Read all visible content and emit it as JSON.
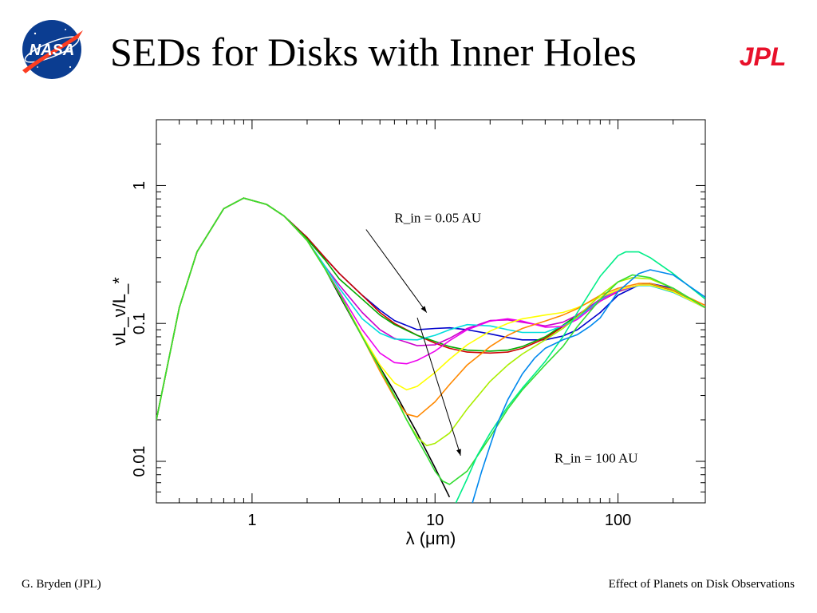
{
  "slide": {
    "title": "SEDs for Disks with Inner Holes",
    "footer_left": "G. Bryden (JPL)",
    "footer_right": "Effect of Planets on Disk Observations",
    "logo_left_text": "NASA",
    "logo_right_text": "JPL"
  },
  "colors": {
    "nasa_blue": "#0b3d91",
    "nasa_red": "#fc3d21",
    "jpl_red": "#e8102a"
  },
  "chart_data": {
    "type": "line",
    "xscale": "log",
    "yscale": "log",
    "xlim": [
      0.3,
      300
    ],
    "ylim": [
      0.005,
      3
    ],
    "xlabel": "λ (μm)",
    "ylabel": "νL_ν/L_*",
    "x_ticks": [
      {
        "value": 1,
        "label": "1"
      },
      {
        "value": 10,
        "label": "10"
      },
      {
        "value": 100,
        "label": "100"
      }
    ],
    "y_ticks": [
      {
        "value": 1,
        "label": "1"
      },
      {
        "value": 0.1,
        "label": "0.1"
      },
      {
        "value": 0.01,
        "label": "0.01"
      }
    ],
    "grid": false,
    "annotations": [
      {
        "text": "R_in = 0.05 AU",
        "x": 6.0,
        "y": 0.54,
        "arrow_from": [
          4.2,
          0.48
        ],
        "arrow_to": [
          9.0,
          0.12
        ]
      },
      {
        "text": "R_in = 100 AU",
        "x": 45,
        "y": 0.0098,
        "arrow_from": [
          8.0,
          0.11
        ],
        "arrow_to": [
          13.8,
          0.011
        ]
      }
    ],
    "series": [
      {
        "color": "#000000",
        "x": [
          0.3,
          0.4,
          0.5,
          0.7,
          0.9,
          1.2,
          1.5,
          2,
          2.5,
          3,
          4,
          5,
          6,
          7,
          8,
          10,
          12
        ],
        "y": [
          0.02,
          0.13,
          0.33,
          0.68,
          0.81,
          0.73,
          0.6,
          0.4,
          0.25,
          0.16,
          0.08,
          0.048,
          0.032,
          0.022,
          0.016,
          0.009,
          0.0055
        ]
      },
      {
        "color": "#0000cc",
        "x": [
          0.3,
          0.4,
          0.5,
          0.7,
          0.9,
          1.2,
          1.5,
          2,
          2.5,
          3,
          4,
          5,
          6,
          8,
          10,
          12,
          15,
          20,
          25,
          30,
          40,
          50,
          60,
          80,
          100,
          130,
          150,
          200,
          300
        ],
        "y": [
          0.02,
          0.13,
          0.33,
          0.68,
          0.81,
          0.73,
          0.6,
          0.42,
          0.3,
          0.23,
          0.16,
          0.125,
          0.105,
          0.09,
          0.092,
          0.093,
          0.09,
          0.084,
          0.079,
          0.076,
          0.076,
          0.081,
          0.09,
          0.12,
          0.16,
          0.19,
          0.195,
          0.18,
          0.13
        ]
      },
      {
        "color": "#cc0000",
        "x": [
          0.3,
          0.4,
          0.5,
          0.7,
          0.9,
          1.2,
          1.5,
          2,
          2.5,
          3,
          4,
          5,
          6,
          8,
          10,
          12,
          15,
          20,
          25,
          30,
          40,
          50,
          60,
          80,
          100,
          130,
          150,
          200,
          300
        ],
        "y": [
          0.02,
          0.13,
          0.33,
          0.68,
          0.81,
          0.73,
          0.6,
          0.42,
          0.3,
          0.23,
          0.16,
          0.12,
          0.1,
          0.082,
          0.072,
          0.066,
          0.062,
          0.061,
          0.062,
          0.066,
          0.078,
          0.095,
          0.113,
          0.145,
          0.17,
          0.19,
          0.19,
          0.17,
          0.13
        ]
      },
      {
        "color": "#00aa00",
        "x": [
          0.3,
          0.4,
          0.5,
          0.7,
          0.9,
          1.2,
          1.5,
          2,
          2.5,
          3,
          4,
          5,
          6,
          8,
          10,
          12,
          15,
          20,
          25,
          30,
          40,
          50,
          60,
          80,
          100,
          130,
          150,
          200,
          300
        ],
        "y": [
          0.02,
          0.13,
          0.33,
          0.68,
          0.81,
          0.73,
          0.6,
          0.41,
          0.29,
          0.21,
          0.15,
          0.115,
          0.098,
          0.082,
          0.074,
          0.068,
          0.064,
          0.063,
          0.064,
          0.068,
          0.08,
          0.097,
          0.115,
          0.147,
          0.172,
          0.19,
          0.192,
          0.172,
          0.13
        ]
      },
      {
        "color": "#cc00cc",
        "x": [
          0.3,
          0.4,
          0.5,
          0.7,
          0.9,
          1.2,
          1.5,
          2,
          2.5,
          3,
          4,
          5,
          6,
          8,
          10,
          12,
          15,
          20,
          25,
          30,
          40,
          50,
          60,
          80,
          100,
          130,
          150,
          200,
          300
        ],
        "y": [
          0.02,
          0.13,
          0.33,
          0.68,
          0.81,
          0.73,
          0.6,
          0.4,
          0.26,
          0.19,
          0.12,
          0.09,
          0.078,
          0.069,
          0.07,
          0.078,
          0.092,
          0.105,
          0.106,
          0.102,
          0.096,
          0.102,
          0.115,
          0.15,
          0.175,
          0.19,
          0.19,
          0.17,
          0.13
        ]
      },
      {
        "color": "#00dddd",
        "x": [
          0.3,
          0.4,
          0.5,
          0.7,
          0.9,
          1.2,
          1.5,
          2,
          2.5,
          3,
          4,
          5,
          6,
          8,
          10,
          12,
          15,
          20,
          25,
          30,
          40,
          50,
          60,
          80,
          100,
          130,
          150,
          200,
          300
        ],
        "y": [
          0.02,
          0.13,
          0.33,
          0.68,
          0.81,
          0.73,
          0.6,
          0.4,
          0.26,
          0.18,
          0.108,
          0.085,
          0.077,
          0.076,
          0.082,
          0.09,
          0.098,
          0.096,
          0.09,
          0.086,
          0.086,
          0.096,
          0.11,
          0.148,
          0.172,
          0.188,
          0.188,
          0.168,
          0.13
        ]
      },
      {
        "color": "#ee00ee",
        "x": [
          0.3,
          0.4,
          0.5,
          0.7,
          0.9,
          1.2,
          1.5,
          2,
          2.5,
          3,
          4,
          5,
          6,
          7,
          8,
          10,
          12,
          15,
          20,
          25,
          30,
          40,
          50,
          60,
          80,
          100,
          130,
          150,
          200,
          300
        ],
        "y": [
          0.02,
          0.13,
          0.33,
          0.68,
          0.81,
          0.73,
          0.6,
          0.4,
          0.25,
          0.17,
          0.09,
          0.061,
          0.052,
          0.051,
          0.054,
          0.063,
          0.075,
          0.09,
          0.104,
          0.108,
          0.104,
          0.094,
          0.095,
          0.107,
          0.145,
          0.172,
          0.19,
          0.19,
          0.17,
          0.13
        ]
      },
      {
        "color": "#ffff00",
        "x": [
          0.3,
          0.4,
          0.5,
          0.7,
          0.9,
          1.2,
          1.5,
          2,
          2.5,
          3,
          4,
          5,
          6,
          7,
          8,
          10,
          12,
          15,
          20,
          25,
          30,
          40,
          50,
          60,
          80,
          100,
          130,
          150,
          200,
          300
        ],
        "y": [
          0.02,
          0.13,
          0.33,
          0.68,
          0.81,
          0.73,
          0.6,
          0.4,
          0.25,
          0.165,
          0.082,
          0.05,
          0.037,
          0.033,
          0.035,
          0.044,
          0.055,
          0.07,
          0.088,
          0.1,
          0.108,
          0.115,
          0.12,
          0.13,
          0.155,
          0.175,
          0.19,
          0.19,
          0.17,
          0.13
        ]
      },
      {
        "color": "#ff8800",
        "x": [
          0.3,
          0.4,
          0.5,
          0.7,
          0.9,
          1.2,
          1.5,
          2,
          2.5,
          3,
          4,
          5,
          6,
          7,
          8,
          10,
          12,
          15,
          20,
          25,
          30,
          40,
          50,
          60,
          80,
          100,
          130,
          150,
          200,
          300
        ],
        "y": [
          0.02,
          0.13,
          0.33,
          0.68,
          0.81,
          0.73,
          0.6,
          0.4,
          0.25,
          0.165,
          0.08,
          0.045,
          0.029,
          0.022,
          0.021,
          0.027,
          0.036,
          0.05,
          0.068,
          0.082,
          0.092,
          0.104,
          0.115,
          0.128,
          0.16,
          0.18,
          0.195,
          0.195,
          0.175,
          0.135
        ]
      },
      {
        "color": "#aaee00",
        "x": [
          0.3,
          0.4,
          0.5,
          0.7,
          0.9,
          1.2,
          1.5,
          2,
          2.5,
          3,
          4,
          5,
          6,
          7,
          8,
          9,
          10,
          12,
          15,
          20,
          25,
          30,
          40,
          50,
          60,
          80,
          100,
          120,
          150,
          200,
          300
        ],
        "y": [
          0.02,
          0.13,
          0.33,
          0.68,
          0.81,
          0.73,
          0.6,
          0.4,
          0.25,
          0.165,
          0.08,
          0.047,
          0.03,
          0.02,
          0.015,
          0.013,
          0.0135,
          0.016,
          0.024,
          0.038,
          0.05,
          0.06,
          0.076,
          0.092,
          0.112,
          0.16,
          0.2,
          0.215,
          0.21,
          0.18,
          0.13
        ]
      },
      {
        "color": "#33dd33",
        "x": [
          0.3,
          0.4,
          0.5,
          0.7,
          0.9,
          1.2,
          1.5,
          2,
          2.5,
          3,
          4,
          5,
          6,
          7,
          8,
          9,
          10,
          11,
          12,
          15,
          20,
          25,
          30,
          40,
          50,
          60,
          80,
          100,
          120,
          150,
          200,
          300
        ],
        "y": [
          0.02,
          0.13,
          0.33,
          0.68,
          0.81,
          0.73,
          0.6,
          0.4,
          0.25,
          0.165,
          0.08,
          0.047,
          0.03,
          0.02,
          0.0145,
          0.011,
          0.0085,
          0.0072,
          0.0068,
          0.0085,
          0.015,
          0.024,
          0.033,
          0.05,
          0.068,
          0.095,
          0.15,
          0.2,
          0.225,
          0.215,
          0.18,
          0.13
        ]
      },
      {
        "color": "#00ee88",
        "x": [
          13,
          15,
          17,
          20,
          25,
          30,
          35,
          40,
          50,
          60,
          80,
          100,
          110,
          130,
          150,
          200,
          300
        ],
        "y": [
          0.005,
          0.0075,
          0.011,
          0.016,
          0.025,
          0.034,
          0.043,
          0.053,
          0.08,
          0.12,
          0.22,
          0.31,
          0.33,
          0.33,
          0.3,
          0.23,
          0.15
        ]
      },
      {
        "color": "#0088ee",
        "x": [
          16,
          18,
          20,
          22,
          25,
          30,
          35,
          40,
          50,
          60,
          70,
          80,
          100,
          130,
          150,
          200,
          300
        ],
        "y": [
          0.005,
          0.0085,
          0.013,
          0.019,
          0.028,
          0.043,
          0.056,
          0.066,
          0.076,
          0.083,
          0.095,
          0.11,
          0.17,
          0.23,
          0.245,
          0.225,
          0.155
        ]
      }
    ]
  }
}
